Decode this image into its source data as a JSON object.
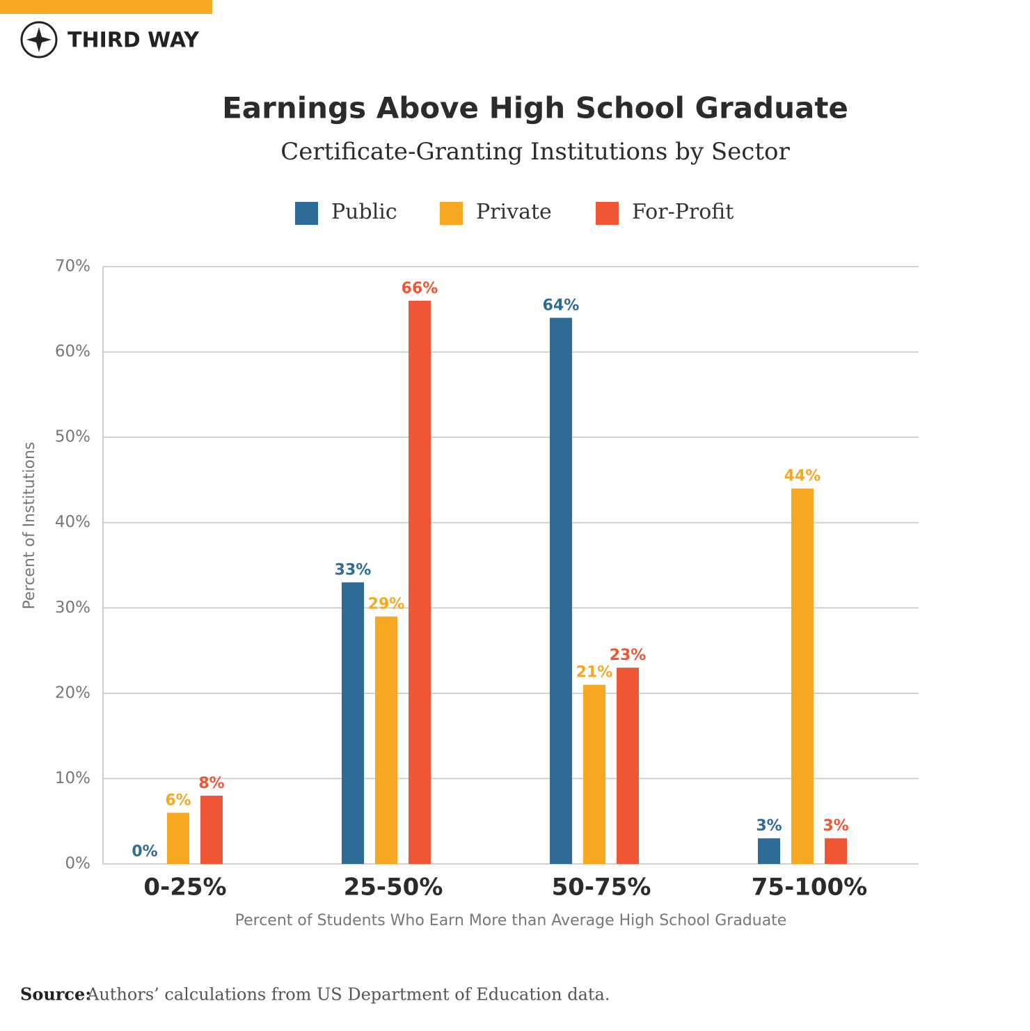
{
  "brand": "THIRD WAY",
  "source": {
    "label": "Source:",
    "text": "Authors’ calculations from US Department of Education data."
  },
  "chart_data": {
    "type": "bar",
    "title": "Earnings Above High School Graduate",
    "subtitle": "Certificate-Granting Institutions by Sector",
    "x_label": "Percent of Students Who Earn More than Average High School Graduate",
    "y_label": "Percent of Institutions",
    "categories": [
      "0-25%",
      "25-50%",
      "50-75%",
      "75-100%"
    ],
    "series": [
      {
        "name": "Public",
        "color": "#2e6b96",
        "values": [
          0,
          33,
          64,
          3
        ],
        "value_labels": [
          "0%",
          "33%",
          "64%",
          "3%"
        ]
      },
      {
        "name": "Private",
        "color": "#f7a823",
        "values": [
          6,
          29,
          21,
          44
        ],
        "value_labels": [
          "6%",
          "29%",
          "21%",
          "44%"
        ]
      },
      {
        "name": "For-Profit",
        "color": "#ef5734",
        "values": [
          8,
          66,
          23,
          3
        ],
        "value_labels": [
          "8%",
          "66%",
          "23%",
          "3%"
        ]
      }
    ],
    "ylim": [
      0,
      70
    ],
    "yticks": [
      {
        "value": 0,
        "label": "0%"
      },
      {
        "value": 10,
        "label": "10%"
      },
      {
        "value": 20,
        "label": "20%"
      },
      {
        "value": 30,
        "label": "30%"
      },
      {
        "value": 40,
        "label": "40%"
      },
      {
        "value": 50,
        "label": "50%"
      },
      {
        "value": 60,
        "label": "60%"
      },
      {
        "value": 70,
        "label": "70%"
      }
    ],
    "grid": true
  }
}
